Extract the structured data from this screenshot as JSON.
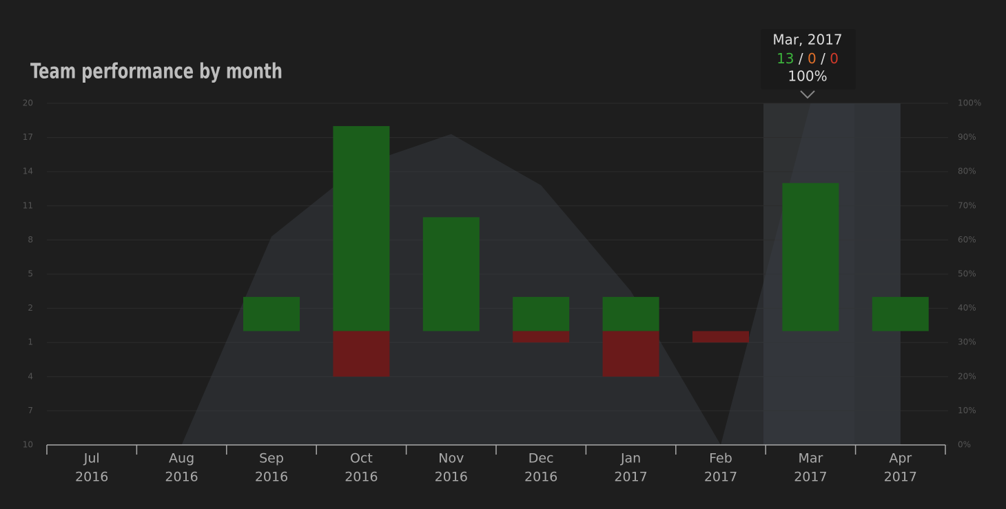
{
  "chart_data": {
    "type": "bar",
    "title": "Team performance by month",
    "categories": [
      [
        "Jul",
        "2016"
      ],
      [
        "Aug",
        "2016"
      ],
      [
        "Sep",
        "2016"
      ],
      [
        "Oct",
        "2016"
      ],
      [
        "Nov",
        "2016"
      ],
      [
        "Dec",
        "2016"
      ],
      [
        "Jan",
        "2017"
      ],
      [
        "Feb",
        "2017"
      ],
      [
        "Mar",
        "2017"
      ],
      [
        "Apr",
        "2017"
      ]
    ],
    "series": [
      {
        "type": "bar",
        "color": "#1b5e1b",
        "values": [
          0,
          0,
          3,
          18,
          10,
          3,
          3,
          0,
          13,
          3
        ]
      },
      {
        "type": "bar",
        "color": "#6a1a1a",
        "values": [
          0,
          0,
          0,
          -4,
          0,
          -1,
          -4,
          -1,
          0,
          0
        ]
      },
      {
        "type": "area",
        "axis": "y2",
        "color": "#3a3f44",
        "values": [
          0,
          0,
          61,
          82,
          91,
          76,
          45,
          0,
          100,
          100
        ]
      }
    ],
    "ylim": [
      -10,
      20
    ],
    "yticks": [
      20,
      17,
      14,
      11,
      8,
      5,
      2,
      {
        "value": -1,
        "label": "1"
      },
      {
        "value": -4,
        "label": "4"
      },
      {
        "value": -7,
        "label": "7"
      },
      {
        "value": -10,
        "label": "10"
      }
    ],
    "y2lim": [
      0,
      100
    ],
    "y2ticks": [
      {
        "value": 100,
        "label": "100%"
      },
      {
        "value": 90,
        "label": "90%"
      },
      {
        "value": 80,
        "label": "80%"
      },
      {
        "value": 70,
        "label": "70%"
      },
      {
        "value": 60,
        "label": "60%"
      },
      {
        "value": 50,
        "label": "50%"
      },
      {
        "value": 40,
        "label": "40%"
      },
      {
        "value": 30,
        "label": "30%"
      },
      {
        "value": 20,
        "label": "20%"
      },
      {
        "value": 10,
        "label": "10%"
      },
      {
        "value": 0,
        "label": "0%"
      }
    ],
    "grid": true,
    "tooltip": {
      "title": "Mar, 2017",
      "wins": "13",
      "draws": "0",
      "losses": "0",
      "separator": "/",
      "percent": "100%"
    }
  }
}
